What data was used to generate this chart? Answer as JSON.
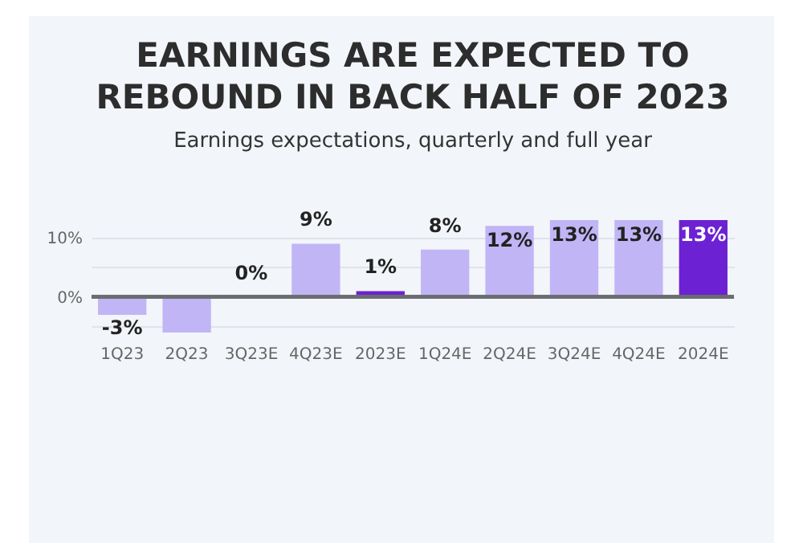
{
  "chart_data": {
    "type": "bar",
    "title": "EARNINGS ARE EXPECTED TO REBOUND IN BACK HALF OF 2023",
    "subtitle": "Earnings expectations, quarterly and full year",
    "categories": [
      "1Q23",
      "2Q23",
      "3Q23E",
      "4Q23E",
      "2023E",
      "1Q24E",
      "2Q24E",
      "3Q24E",
      "4Q24E",
      "2024E"
    ],
    "values": [
      -3,
      -6,
      0,
      9,
      1,
      8,
      12,
      13,
      13,
      13
    ],
    "colors": [
      "#c1b5f6",
      "#c1b5f6",
      "#c1b5f6",
      "#c1b5f6",
      "#6c22d3",
      "#c1b5f6",
      "#c1b5f6",
      "#c1b5f6",
      "#c1b5f6",
      "#6c22d3"
    ],
    "value_labels": [
      "-3%",
      null,
      "0%",
      "9%",
      "1%",
      "8%",
      "12%",
      "13%",
      "13%",
      "13%"
    ],
    "ylim": [
      -6,
      13
    ],
    "yticks": [
      {
        "value": -5,
        "label": null
      },
      {
        "value": 0,
        "label": "0%"
      },
      {
        "value": 5,
        "label": null
      },
      {
        "value": 10,
        "label": "10%"
      }
    ],
    "grid": "y"
  }
}
